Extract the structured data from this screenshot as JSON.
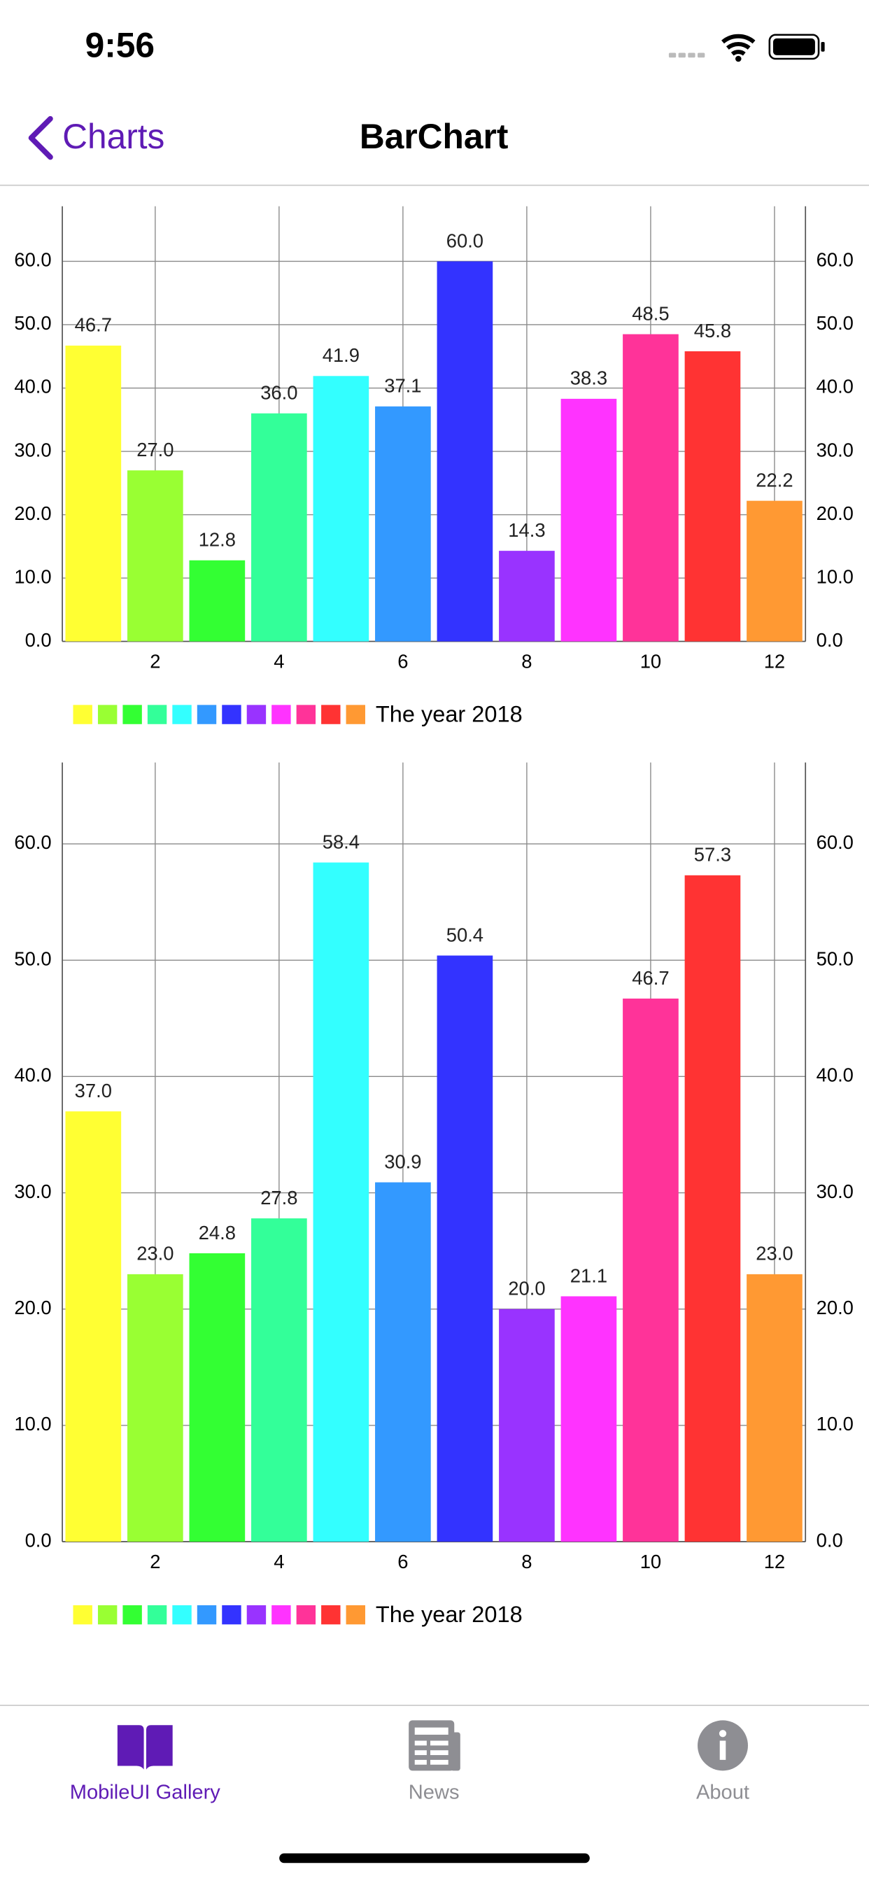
{
  "status_bar": {
    "time": "9:56"
  },
  "nav": {
    "back": "Charts",
    "title": "BarChart"
  },
  "tabs": [
    {
      "label": "MobileUI Gallery"
    },
    {
      "label": "News"
    },
    {
      "label": "About"
    }
  ],
  "chart_data": [
    {
      "type": "bar",
      "x": [
        1,
        2,
        3,
        4,
        5,
        6,
        7,
        8,
        9,
        10,
        11,
        12
      ],
      "xlim": [
        0.5,
        12.5
      ],
      "xticks": [
        2,
        4,
        6,
        8,
        10,
        12
      ],
      "ylim": [
        0,
        68.7
      ],
      "yticks": [
        {
          "value": 0,
          "label": "0.0"
        },
        {
          "value": 10,
          "label": "10.0"
        },
        {
          "value": 20,
          "label": "20.0"
        },
        {
          "value": 30,
          "label": "30.0"
        },
        {
          "value": 40,
          "label": "40.0"
        },
        {
          "value": 50,
          "label": "50.0"
        },
        {
          "value": 60,
          "label": "60.0"
        }
      ],
      "grid": true,
      "right_axis": true,
      "legend": "bottom-left",
      "series": [
        {
          "name": "The year 2018",
          "colors": [
            "#ffff33",
            "#99ff33",
            "#33ff33",
            "#33ff99",
            "#33ffff",
            "#3399ff",
            "#3333ff",
            "#9933ff",
            "#ff33ff",
            "#ff3399",
            "#ff3333",
            "#ff9933"
          ],
          "values": [
            46.7,
            27.0,
            12.8,
            36.0,
            41.9,
            37.1,
            60.0,
            14.3,
            38.3,
            48.5,
            45.8,
            22.2
          ],
          "value_labels": [
            "46.7",
            "27.0",
            "12.8",
            "36.0",
            "41.9",
            "37.1",
            "60.0",
            "14.3",
            "38.3",
            "48.5",
            "45.8",
            "22.2"
          ]
        }
      ]
    },
    {
      "type": "bar",
      "x": [
        1,
        2,
        3,
        4,
        5,
        6,
        7,
        8,
        9,
        10,
        11,
        12
      ],
      "xlim": [
        0.5,
        12.5
      ],
      "xticks": [
        2,
        4,
        6,
        8,
        10,
        12
      ],
      "ylim": [
        0,
        67.0
      ],
      "yticks": [
        {
          "value": 0,
          "label": "0.0"
        },
        {
          "value": 10,
          "label": "10.0"
        },
        {
          "value": 20,
          "label": "20.0"
        },
        {
          "value": 30,
          "label": "30.0"
        },
        {
          "value": 40,
          "label": "40.0"
        },
        {
          "value": 50,
          "label": "50.0"
        },
        {
          "value": 60,
          "label": "60.0"
        }
      ],
      "grid": true,
      "right_axis": true,
      "legend": "bottom-left",
      "series": [
        {
          "name": "The year 2018",
          "colors": [
            "#ffff33",
            "#99ff33",
            "#33ff33",
            "#33ff99",
            "#33ffff",
            "#3399ff",
            "#3333ff",
            "#9933ff",
            "#ff33ff",
            "#ff3399",
            "#ff3333",
            "#ff9933"
          ],
          "values": [
            37.0,
            23.0,
            24.8,
            27.8,
            58.4,
            30.9,
            50.4,
            20.0,
            21.1,
            46.7,
            57.3,
            23.0
          ],
          "value_labels": [
            "37.0",
            "23.0",
            "24.8",
            "27.8",
            "58.4",
            "30.9",
            "50.4",
            "20.0",
            "21.1",
            "46.7",
            "57.3",
            "23.0"
          ]
        }
      ]
    }
  ]
}
